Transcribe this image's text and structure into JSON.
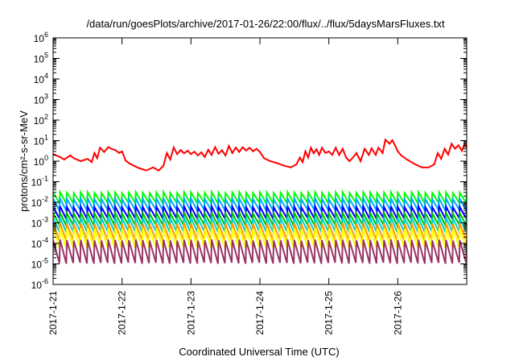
{
  "chart_data": {
    "type": "line",
    "title": "/data/run/goesPlots/archive/2017-01-26/22:00/flux/../flux/5daysMarsFluxes.txt",
    "xlabel": "Coordinated Universal Time (UTC)",
    "ylabel": "protons/cm²-s-sr-MeV",
    "y_scale": "log",
    "ylim_exponents": [
      -6,
      6
    ],
    "y_tick_base": "10",
    "y_tick_exponents": [
      "-6",
      "-5",
      "-4",
      "-3",
      "-2",
      "-1",
      "0",
      "1",
      "2",
      "3",
      "4",
      "5",
      "6"
    ],
    "xlim_days": [
      0,
      6
    ],
    "x_ticks": [
      {
        "day": 0,
        "label": "2017-1-21"
      },
      {
        "day": 1,
        "label": "2017-1-22"
      },
      {
        "day": 2,
        "label": "2017-1-23"
      },
      {
        "day": 3,
        "label": "2017-1-24"
      },
      {
        "day": 4,
        "label": "2017-1-25"
      },
      {
        "day": 5,
        "label": "2017-1-26"
      }
    ],
    "grid": false,
    "legend": "none",
    "series": [
      {
        "color": "#ff0000",
        "width": 2,
        "x": [
          0.0,
          0.1,
          0.16,
          0.25,
          0.3,
          0.4,
          0.5,
          0.56,
          0.6,
          0.64,
          0.68,
          0.74,
          0.8,
          0.86,
          0.9,
          0.96,
          1.0,
          1.05,
          1.1,
          1.17,
          1.25,
          1.35,
          1.45,
          1.53,
          1.6,
          1.65,
          1.7,
          1.75,
          1.8,
          1.85,
          1.9,
          1.95,
          2.0,
          2.05,
          2.1,
          2.15,
          2.2,
          2.25,
          2.3,
          2.35,
          2.4,
          2.45,
          2.5,
          2.55,
          2.6,
          2.65,
          2.7,
          2.75,
          2.8,
          2.85,
          2.9,
          2.95,
          3.0,
          3.06,
          3.15,
          3.25,
          3.35,
          3.45,
          3.53,
          3.58,
          3.62,
          3.66,
          3.7,
          3.74,
          3.78,
          3.82,
          3.86,
          3.9,
          3.95,
          4.0,
          4.05,
          4.1,
          4.15,
          4.2,
          4.25,
          4.3,
          4.35,
          4.4,
          4.46,
          4.52,
          4.58,
          4.62,
          4.68,
          4.72,
          4.78,
          4.82,
          4.88,
          4.92,
          4.96,
          5.0,
          5.05,
          5.15,
          5.25,
          5.35,
          5.45,
          5.53,
          5.58,
          5.63,
          5.68,
          5.73,
          5.78,
          5.83,
          5.88,
          5.93,
          5.97,
          6.0
        ],
        "y": [
          2.2,
          1.6,
          1.2,
          1.9,
          1.4,
          1.0,
          1.3,
          0.9,
          2.5,
          1.4,
          4.5,
          2.8,
          4.8,
          3.8,
          3.5,
          2.5,
          3.0,
          1.1,
          0.8,
          0.6,
          0.45,
          0.35,
          0.5,
          0.35,
          0.6,
          2.5,
          1.2,
          4.6,
          2.2,
          3.5,
          2.4,
          3.2,
          2.2,
          2.9,
          1.9,
          2.7,
          1.6,
          3.6,
          2.0,
          4.8,
          2.3,
          3.4,
          1.9,
          5.5,
          2.5,
          4.6,
          2.8,
          4.8,
          3.3,
          4.5,
          3.0,
          4.0,
          2.8,
          1.4,
          1.0,
          0.8,
          0.6,
          0.5,
          0.7,
          1.5,
          0.9,
          3.0,
          1.5,
          4.5,
          2.4,
          3.8,
          2.0,
          4.5,
          2.5,
          3.0,
          2.0,
          4.5,
          2.0,
          4.0,
          1.5,
          1.0,
          1.5,
          2.5,
          1.0,
          4.0,
          2.0,
          4.2,
          2.0,
          4.5,
          2.5,
          11.0,
          7.0,
          10.5,
          6.0,
          3.0,
          1.9,
          1.1,
          0.7,
          0.5,
          0.5,
          0.7,
          2.5,
          1.3,
          4.0,
          2.1,
          7.0,
          4.0,
          6.0,
          3.2,
          7.0,
          4.5
        ]
      },
      {
        "color": "#00ff00",
        "width": 2,
        "wave": {
          "base": 0.02,
          "period": 0.1,
          "peak": 1.5,
          "trough": 0.45
        }
      },
      {
        "color": "#00aaff",
        "width": 2,
        "wave": {
          "base": 0.01,
          "period": 0.1,
          "peak": 1.5,
          "trough": 0.4
        }
      },
      {
        "color": "#0000ff",
        "width": 2,
        "wave": {
          "base": 0.004,
          "period": 0.1,
          "peak": 1.5,
          "trough": 0.4
        }
      },
      {
        "color": "#00c000",
        "width": 2,
        "wave": {
          "base": 0.002,
          "period": 0.1,
          "peak": 1.5,
          "trough": 0.38
        }
      },
      {
        "color": "#00d0d0",
        "width": 2,
        "wave": {
          "base": 0.0011,
          "period": 0.1,
          "peak": 1.6,
          "trough": 0.33
        }
      },
      {
        "color": "#ff9900",
        "width": 2,
        "wave": {
          "base": 0.00055,
          "period": 0.1,
          "peak": 1.7,
          "trough": 0.25
        }
      },
      {
        "color": "#ffff00",
        "width": 2,
        "wave": {
          "base": 0.0003,
          "period": 0.1,
          "peak": 1.8,
          "trough": 0.2
        }
      },
      {
        "color": "#993366",
        "width": 2,
        "wave": {
          "base": 9e-05,
          "period": 0.1,
          "peak": 1.6,
          "trough": 0.12
        }
      }
    ]
  }
}
